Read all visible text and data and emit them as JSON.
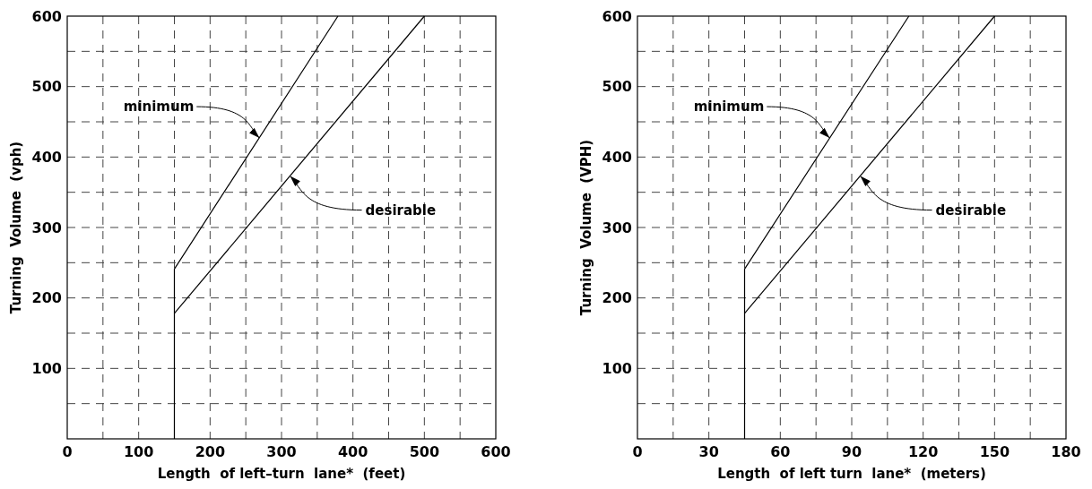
{
  "chart_data": [
    {
      "type": "line",
      "xlabel": "Length  of left–turn  lane*  (feet)",
      "ylabel": "Turning  Volume  (vph)",
      "xlim": [
        0,
        600
      ],
      "ylim": [
        0,
        600
      ],
      "xticks": [
        0,
        {
          "value": 50,
          "label": null
        },
        100,
        {
          "value": 150,
          "label": null
        },
        200,
        {
          "value": 250,
          "label": null
        },
        300,
        {
          "value": 350,
          "label": null
        },
        400,
        {
          "value": 450,
          "label": null
        },
        500,
        {
          "value": 550,
          "label": null
        },
        600
      ],
      "yticks": [
        {
          "value": 50,
          "label": null
        },
        100,
        {
          "value": 150,
          "label": null
        },
        200,
        {
          "value": 250,
          "label": null
        },
        300,
        {
          "value": 350,
          "label": null
        },
        400,
        {
          "value": 450,
          "label": null
        },
        500,
        {
          "value": 550,
          "label": null
        },
        600
      ],
      "grid": true,
      "line_style": "solid",
      "marker": "none",
      "series": [
        {
          "color": "#000000",
          "x": [
            150,
            150,
            379
          ],
          "values": [
            0,
            241,
            600
          ]
        },
        {
          "color": "#000000",
          "x": [
            150,
            500
          ],
          "values": [
            178,
            600
          ]
        }
      ],
      "annotations": [
        {
          "text": "minimum",
          "x": 269,
          "y": 427
        },
        {
          "text": "desirable",
          "x": 312,
          "y": 373
        }
      ]
    },
    {
      "type": "line",
      "xlabel": "Length  of left turn  lane*  (meters)",
      "ylabel": "Turning  Volume  (VPH)",
      "xlim": [
        0,
        180
      ],
      "ylim": [
        0,
        600
      ],
      "xticks": [
        0,
        {
          "value": 15,
          "label": null
        },
        30,
        {
          "value": 45,
          "label": null
        },
        60,
        {
          "value": 75,
          "label": null
        },
        90,
        {
          "value": 105,
          "label": null
        },
        120,
        {
          "value": 135,
          "label": null
        },
        150,
        {
          "value": 165,
          "label": null
        },
        180
      ],
      "yticks": [
        {
          "value": 50,
          "label": null
        },
        100,
        {
          "value": 150,
          "label": null
        },
        200,
        {
          "value": 250,
          "label": null
        },
        300,
        {
          "value": 350,
          "label": null
        },
        400,
        {
          "value": 450,
          "label": null
        },
        500,
        {
          "value": 550,
          "label": null
        },
        600
      ],
      "grid": true,
      "line_style": "solid",
      "marker": "none",
      "series": [
        {
          "color": "#000000",
          "x": [
            45,
            45,
            114
          ],
          "values": [
            0,
            241,
            600
          ]
        },
        {
          "color": "#000000",
          "x": [
            45,
            150
          ],
          "values": [
            178,
            600
          ]
        }
      ],
      "annotations": [
        {
          "text": "minimum",
          "x": 80.7,
          "y": 427
        },
        {
          "text": "desirable",
          "x": 93.6,
          "y": 373
        }
      ]
    }
  ]
}
